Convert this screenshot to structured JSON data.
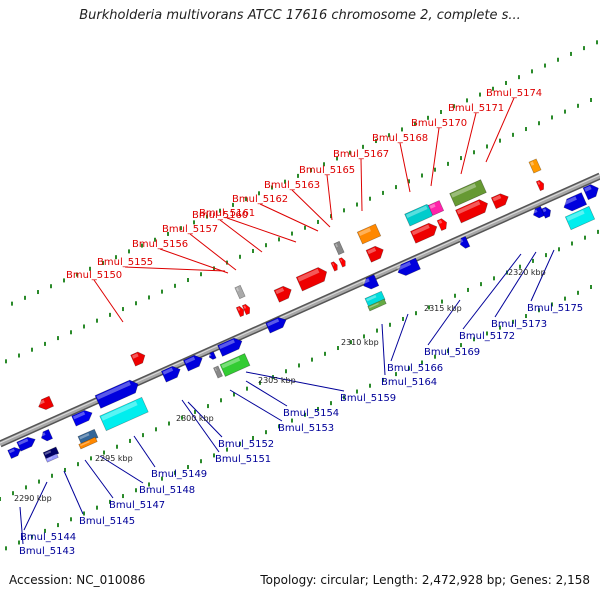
{
  "title": "Burkholderia multivorans ATCC 17616 chromosome 2, complete s...",
  "accession_text": "Accession: NC_010086",
  "summary_text": "Topology: circular; Length: 2,472,928 bp; Genes: 2,158",
  "colors": {
    "top_label": "#dd0000",
    "bottom_label": "#000099",
    "backbone": "#8a8a8a",
    "tick": "#2a8a2a"
  },
  "kbp_labels": [
    "2290 kbp",
    "2295 kbp",
    "2300 kbp",
    "2305 kbp",
    "2310 kbp",
    "2315 kbp",
    "2320 kbp"
  ],
  "top_genes": [
    "Bmul_5150",
    "Bmul_5155",
    "Bmul_5156",
    "Bmul_5157",
    "Bmul_5160",
    "Bmul_5161",
    "Bmul_5162",
    "Bmul_5163",
    "Bmul_5165",
    "Bmul_5167",
    "Bmul_5168",
    "Bmul_5170",
    "Bmul_5171",
    "Bmul_5174"
  ],
  "bottom_genes": [
    "Bmul_5143",
    "Bmul_5144",
    "Bmul_5145",
    "Bmul_5147",
    "Bmul_5148",
    "Bmul_5149",
    "Bmul_5151",
    "Bmul_5152",
    "Bmul_5153",
    "Bmul_5154",
    "Bmul_5159",
    "Bmul_5164",
    "Bmul_5166",
    "Bmul_5169",
    "Bmul_5172",
    "Bmul_5173",
    "Bmul_5175"
  ]
}
